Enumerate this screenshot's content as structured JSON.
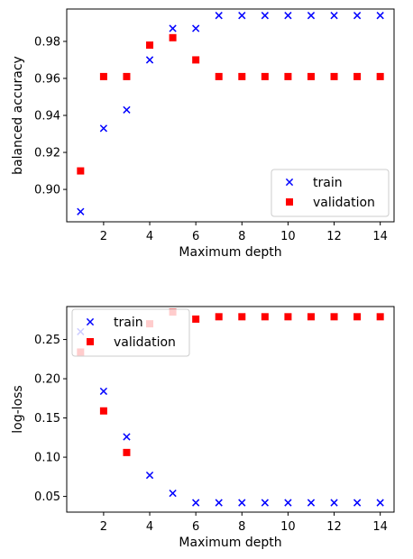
{
  "chart_data": [
    {
      "type": "scatter",
      "xlabel": "Maximum depth",
      "ylabel": "balanced accuracy",
      "xlim": [
        0.4,
        14.6
      ],
      "ylim": [
        0.8825,
        0.9975
      ],
      "xticks": [
        2,
        4,
        6,
        8,
        10,
        12,
        14
      ],
      "xtick_labels": [
        "2",
        "4",
        "6",
        "8",
        "10",
        "12",
        "14"
      ],
      "yticks": [
        0.9,
        0.92,
        0.94,
        0.96,
        0.98
      ],
      "ytick_labels": [
        "0.90",
        "0.92",
        "0.94",
        "0.96",
        "0.98"
      ],
      "legend_position": "lower-right",
      "x": [
        1,
        2,
        3,
        4,
        5,
        6,
        7,
        8,
        9,
        10,
        11,
        12,
        13,
        14
      ],
      "series": [
        {
          "name": "train",
          "marker": "x",
          "color": "#0000ff",
          "values": [
            0.888,
            0.933,
            0.943,
            0.97,
            0.987,
            0.987,
            0.994,
            0.994,
            0.994,
            0.994,
            0.994,
            0.994,
            0.994,
            0.994
          ]
        },
        {
          "name": "validation",
          "marker": "square",
          "color": "#ff0000",
          "values": [
            0.91,
            0.961,
            0.961,
            0.978,
            0.982,
            0.97,
            0.961,
            0.961,
            0.961,
            0.961,
            0.961,
            0.961,
            0.961,
            0.961
          ]
        }
      ]
    },
    {
      "type": "scatter",
      "xlabel": "Maximum depth",
      "ylabel": "log-loss",
      "xlim": [
        0.4,
        14.6
      ],
      "ylim": [
        0.03,
        0.292
      ],
      "xticks": [
        2,
        4,
        6,
        8,
        10,
        12,
        14
      ],
      "xtick_labels": [
        "2",
        "4",
        "6",
        "8",
        "10",
        "12",
        "14"
      ],
      "yticks": [
        0.05,
        0.1,
        0.15,
        0.2,
        0.25
      ],
      "ytick_labels": [
        "0.05",
        "0.10",
        "0.15",
        "0.20",
        "0.25"
      ],
      "legend_position": "upper-left",
      "x": [
        1,
        2,
        3,
        4,
        5,
        6,
        7,
        8,
        9,
        10,
        11,
        12,
        13,
        14
      ],
      "series": [
        {
          "name": "train",
          "marker": "x",
          "color": "#0000ff",
          "values": [
            0.26,
            0.184,
            0.126,
            0.077,
            0.054,
            0.042,
            0.042,
            0.042,
            0.042,
            0.042,
            0.042,
            0.042,
            0.042,
            0.042
          ]
        },
        {
          "name": "validation",
          "marker": "square",
          "color": "#ff0000",
          "values": [
            0.234,
            0.159,
            0.106,
            0.27,
            0.285,
            0.276,
            0.279,
            0.279,
            0.279,
            0.279,
            0.279,
            0.279,
            0.279,
            0.279
          ]
        }
      ]
    }
  ]
}
